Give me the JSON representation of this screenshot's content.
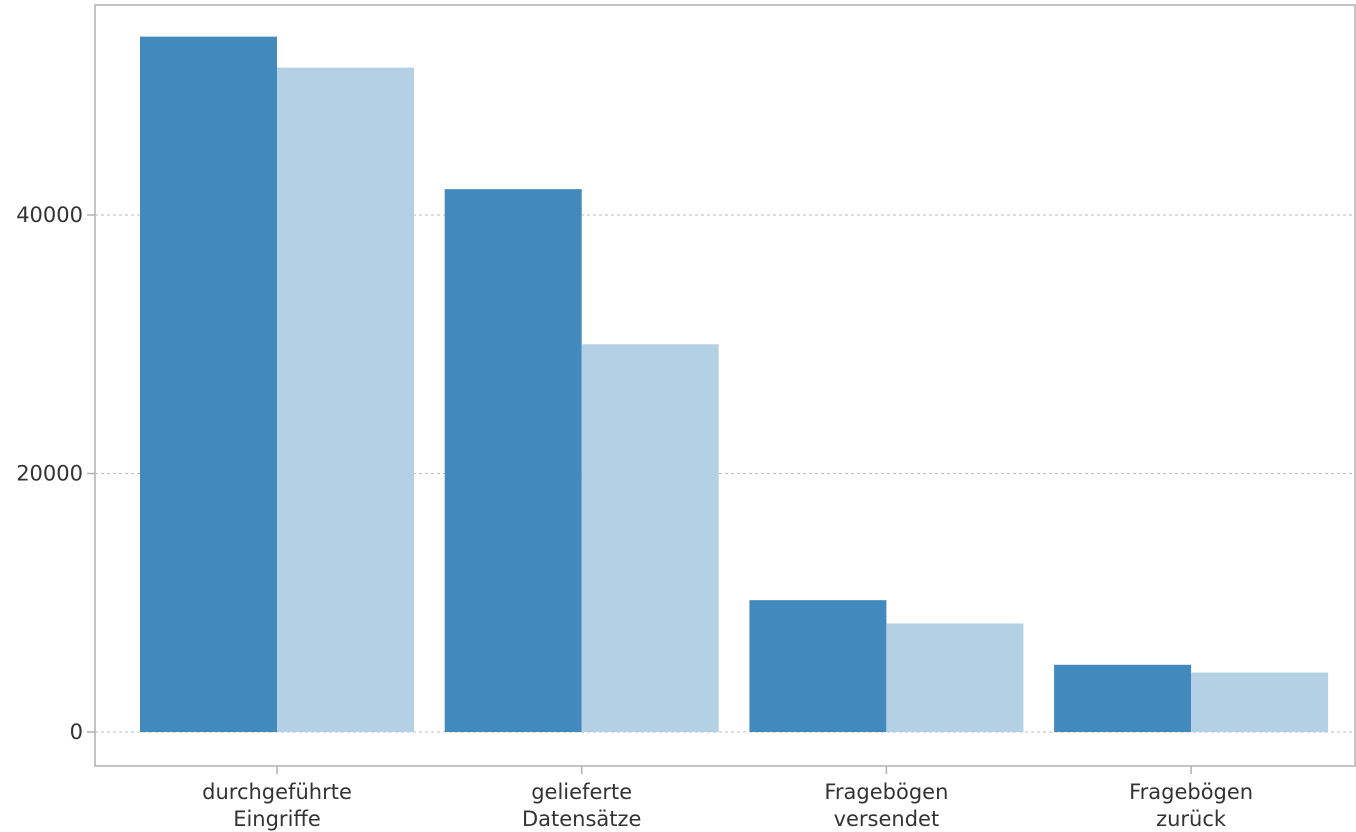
{
  "chart_data": {
    "type": "bar",
    "title": "",
    "xlabel": "",
    "ylabel": "",
    "categories": [
      [
        "durchgeführte",
        "Eingriffe"
      ],
      [
        "gelieferte",
        "Datensätze"
      ],
      [
        "Fragebögen",
        "versendet"
      ],
      [
        "Fragebögen",
        "zurück"
      ]
    ],
    "series": [
      {
        "color": "#4289bd",
        "values": [
          53800,
          42000,
          10200,
          5200
        ]
      },
      {
        "color": "#b3d0e5",
        "values": [
          51400,
          30000,
          8400,
          4600
        ]
      }
    ],
    "yticks": [
      0,
      20000,
      40000
    ],
    "ylim": [
      -2600,
      56500
    ],
    "grid": "horizontal-dashed",
    "legend": "none"
  }
}
